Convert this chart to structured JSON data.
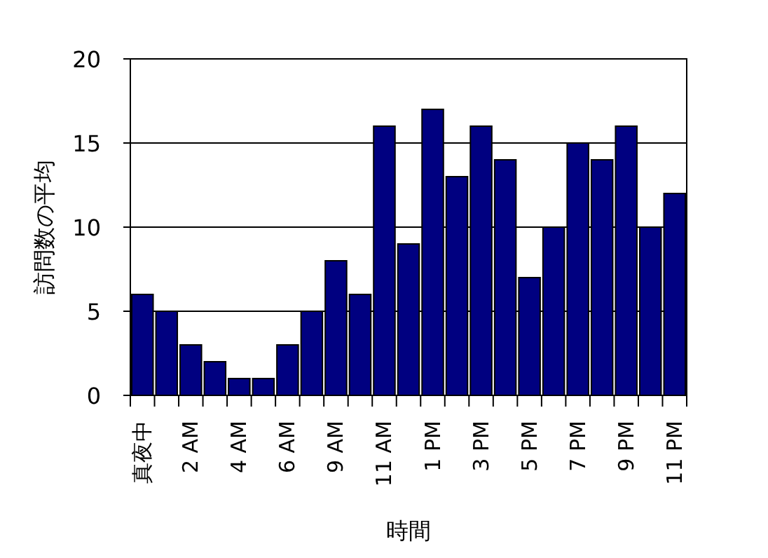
{
  "chart_data": {
    "type": "bar",
    "xlabel": "時間",
    "ylabel": "訪問数の平均",
    "categories": [
      "真夜中",
      null,
      "2 AM",
      null,
      "4 AM",
      null,
      "6 AM",
      null,
      "9 AM",
      null,
      "11 AM",
      null,
      "1 PM",
      null,
      "3 PM",
      null,
      "5 PM",
      null,
      "7 PM",
      null,
      "9 PM",
      null,
      "11 PM"
    ],
    "values": [
      6,
      5,
      3,
      2,
      1,
      1,
      3,
      5,
      8,
      6,
      16,
      9,
      17,
      13,
      16,
      14,
      7,
      10,
      15,
      14,
      16,
      10,
      12
    ],
    "color": "#000080",
    "ylim": [
      0,
      20
    ],
    "yticks": [
      0,
      5,
      10,
      15,
      20
    ],
    "grid": "y"
  }
}
